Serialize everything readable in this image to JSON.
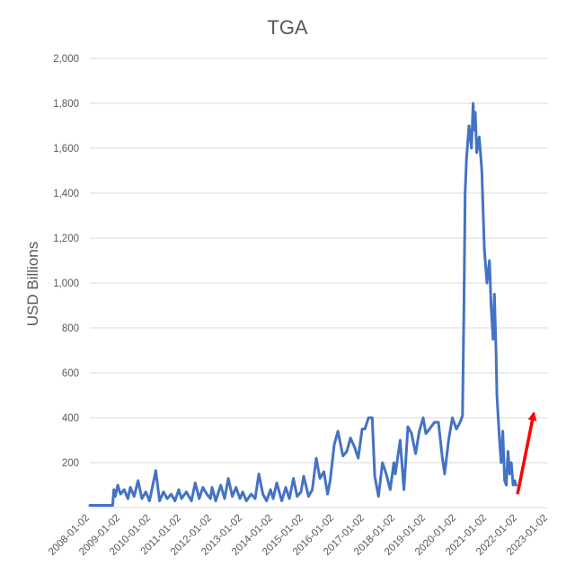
{
  "chart_data": {
    "type": "line",
    "title": "TGA",
    "xlabel": "",
    "ylabel": "USD Billions",
    "ylim": [
      0,
      2000
    ],
    "xlim": [
      "2008-01-02",
      "2023-01-02"
    ],
    "grid": true,
    "y_tick_labels": [
      "",
      "200",
      "400",
      "600",
      "800",
      "1,000",
      "1,200",
      "1,400",
      "1,600",
      "1,800",
      "2,000"
    ],
    "x_tick_labels": [
      "2008-01-02",
      "2009-01-02",
      "2010-01-02",
      "2011-01-02",
      "2012-01-02",
      "2013-01-02",
      "2014-01-02",
      "2015-01-02",
      "2016-01-02",
      "2017-01-02",
      "2018-01-02",
      "2019-01-02",
      "2020-01-02",
      "2021-01-02",
      "2022-01-02",
      "2023-01-02"
    ],
    "colors": {
      "series": "#4472C4",
      "arrow": "#FF0000",
      "text": "#595959",
      "grid": "#D9D9D9"
    },
    "series": [
      {
        "x": [
          "2008-01-02",
          "2008-04-01",
          "2008-07-01",
          "2008-09-15",
          "2008-10-01",
          "2008-10-15",
          "2008-11-01",
          "2008-12-01",
          "2009-01-02",
          "2009-02-15",
          "2009-04-01",
          "2009-05-01",
          "2009-06-15",
          "2009-08-01",
          "2009-09-15",
          "2009-11-01",
          "2009-12-15",
          "2010-01-02",
          "2010-03-01",
          "2010-04-15",
          "2010-06-01",
          "2010-07-15",
          "2010-09-01",
          "2010-10-15",
          "2010-12-01",
          "2011-01-02",
          "2011-03-01",
          "2011-05-01",
          "2011-06-15",
          "2011-08-01",
          "2011-09-15",
          "2011-11-01",
          "2011-12-15",
          "2012-01-02",
          "2012-02-15",
          "2012-04-15",
          "2012-06-01",
          "2012-07-15",
          "2012-09-01",
          "2012-10-15",
          "2012-12-01",
          "2013-01-02",
          "2013-02-15",
          "2013-04-15",
          "2013-06-01",
          "2013-07-15",
          "2013-09-01",
          "2013-10-15",
          "2013-12-01",
          "2014-01-02",
          "2014-02-15",
          "2014-04-15",
          "2014-06-01",
          "2014-07-15",
          "2014-09-01",
          "2014-10-15",
          "2014-12-01",
          "2015-01-02",
          "2015-03-01",
          "2015-04-15",
          "2015-06-01",
          "2015-07-15",
          "2015-09-01",
          "2015-10-15",
          "2015-11-15",
          "2016-01-02",
          "2016-02-15",
          "2016-04-15",
          "2016-06-01",
          "2016-07-15",
          "2016-09-01",
          "2016-10-15",
          "2016-12-01",
          "2017-01-02",
          "2017-02-15",
          "2017-04-01",
          "2017-05-01",
          "2017-06-15",
          "2017-08-01",
          "2017-09-15",
          "2017-11-01",
          "2017-12-15",
          "2018-01-02",
          "2018-03-01",
          "2018-04-15",
          "2018-06-01",
          "2018-07-15",
          "2018-09-01",
          "2018-10-15",
          "2018-12-01",
          "2019-01-02",
          "2019-02-15",
          "2019-04-15",
          "2019-06-01",
          "2019-07-15",
          "2019-08-15",
          "2019-10-01",
          "2019-11-15",
          "2020-01-02",
          "2020-02-15",
          "2020-03-15",
          "2020-04-01",
          "2020-04-15",
          "2020-05-01",
          "2020-06-01",
          "2020-07-01",
          "2020-07-20",
          "2020-08-01",
          "2020-08-15",
          "2020-09-01",
          "2020-10-01",
          "2020-11-01",
          "2020-12-01",
          "2021-01-02",
          "2021-02-01",
          "2021-02-20",
          "2021-03-15",
          "2021-04-01",
          "2021-04-20",
          "2021-05-01",
          "2021-06-01",
          "2021-06-20",
          "2021-07-10",
          "2021-08-01",
          "2021-08-20",
          "2021-09-10",
          "2021-10-01",
          "2021-10-20",
          "2021-11-10",
          "2021-12-01",
          "2021-12-15"
        ],
        "values": [
          10,
          10,
          10,
          10,
          10,
          80,
          50,
          100,
          60,
          80,
          40,
          90,
          50,
          120,
          40,
          70,
          30,
          60,
          165,
          30,
          70,
          40,
          60,
          30,
          80,
          40,
          70,
          30,
          110,
          40,
          90,
          60,
          40,
          90,
          30,
          100,
          40,
          130,
          50,
          90,
          40,
          70,
          30,
          60,
          40,
          150,
          60,
          30,
          80,
          40,
          110,
          30,
          90,
          40,
          130,
          50,
          70,
          140,
          50,
          80,
          220,
          130,
          160,
          60,
          120,
          280,
          340,
          230,
          250,
          310,
          270,
          220,
          350,
          350,
          400,
          400,
          140,
          50,
          200,
          150,
          80,
          200,
          150,
          300,
          80,
          360,
          330,
          240,
          340,
          400,
          330,
          350,
          380,
          380,
          230,
          150,
          300,
          400,
          350,
          380,
          410,
          900,
          1400,
          1550,
          1700,
          1600,
          1800,
          1680,
          1760,
          1580,
          1650,
          1500,
          1150,
          1000,
          1100,
          900,
          750,
          950,
          700,
          500,
          300,
          200,
          340,
          120,
          100,
          250,
          150,
          200,
          100,
          120,
          100
        ]
      }
    ],
    "annotations": [
      {
        "type": "arrow",
        "from": [
          "2022-01-02",
          60
        ],
        "to": [
          "2022-07-15",
          420
        ]
      }
    ]
  }
}
